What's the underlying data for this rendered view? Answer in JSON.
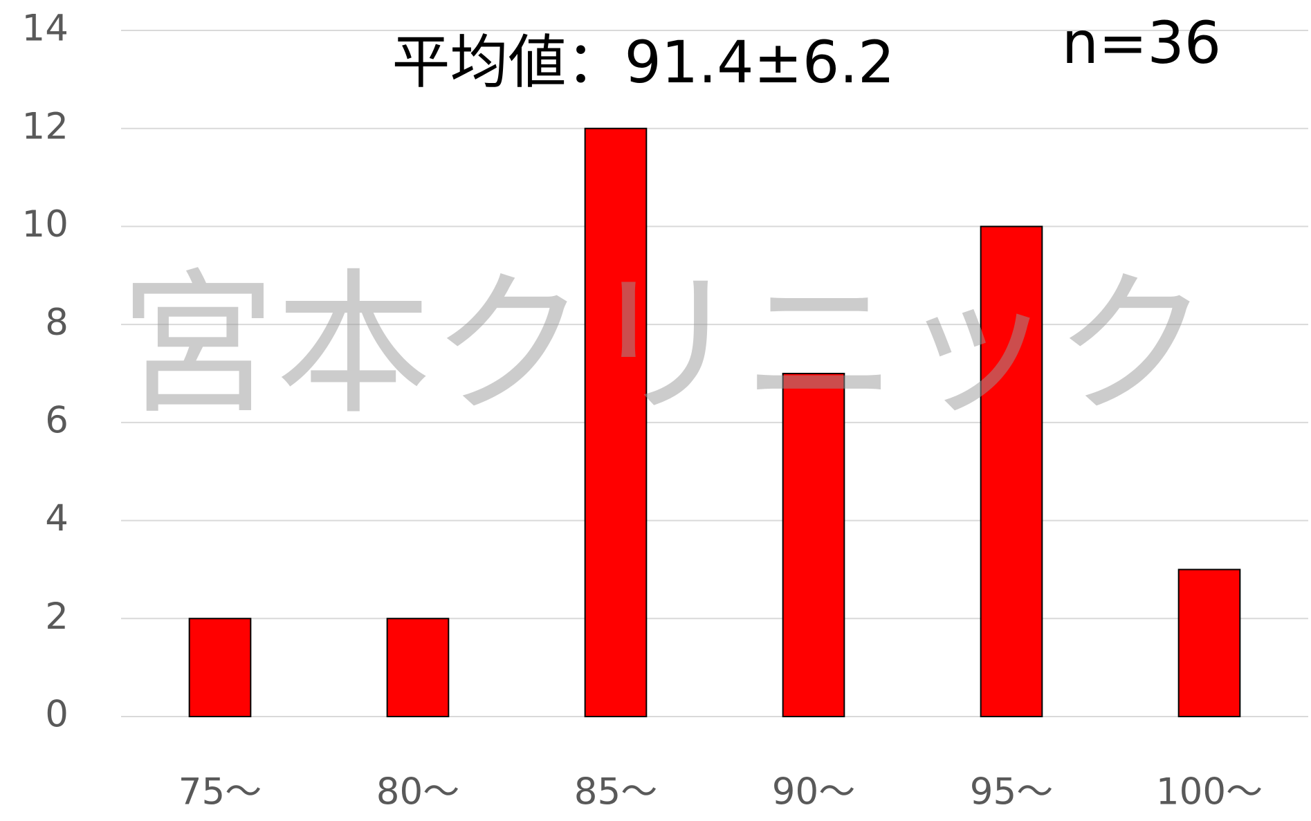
{
  "chart_data": {
    "type": "bar",
    "title": "平均値：91.4±6.2",
    "annotations": [
      "n=36"
    ],
    "watermark": "宮本クリニック",
    "categories": [
      "75～",
      "80～",
      "85～",
      "90～",
      "95～",
      "100～"
    ],
    "values": [
      2,
      2,
      12,
      7,
      10,
      3
    ],
    "color": "#ff0000",
    "ylim": [
      0,
      14
    ],
    "yticks": [
      0,
      2,
      4,
      6,
      8,
      10,
      12,
      14
    ],
    "grid": true
  }
}
